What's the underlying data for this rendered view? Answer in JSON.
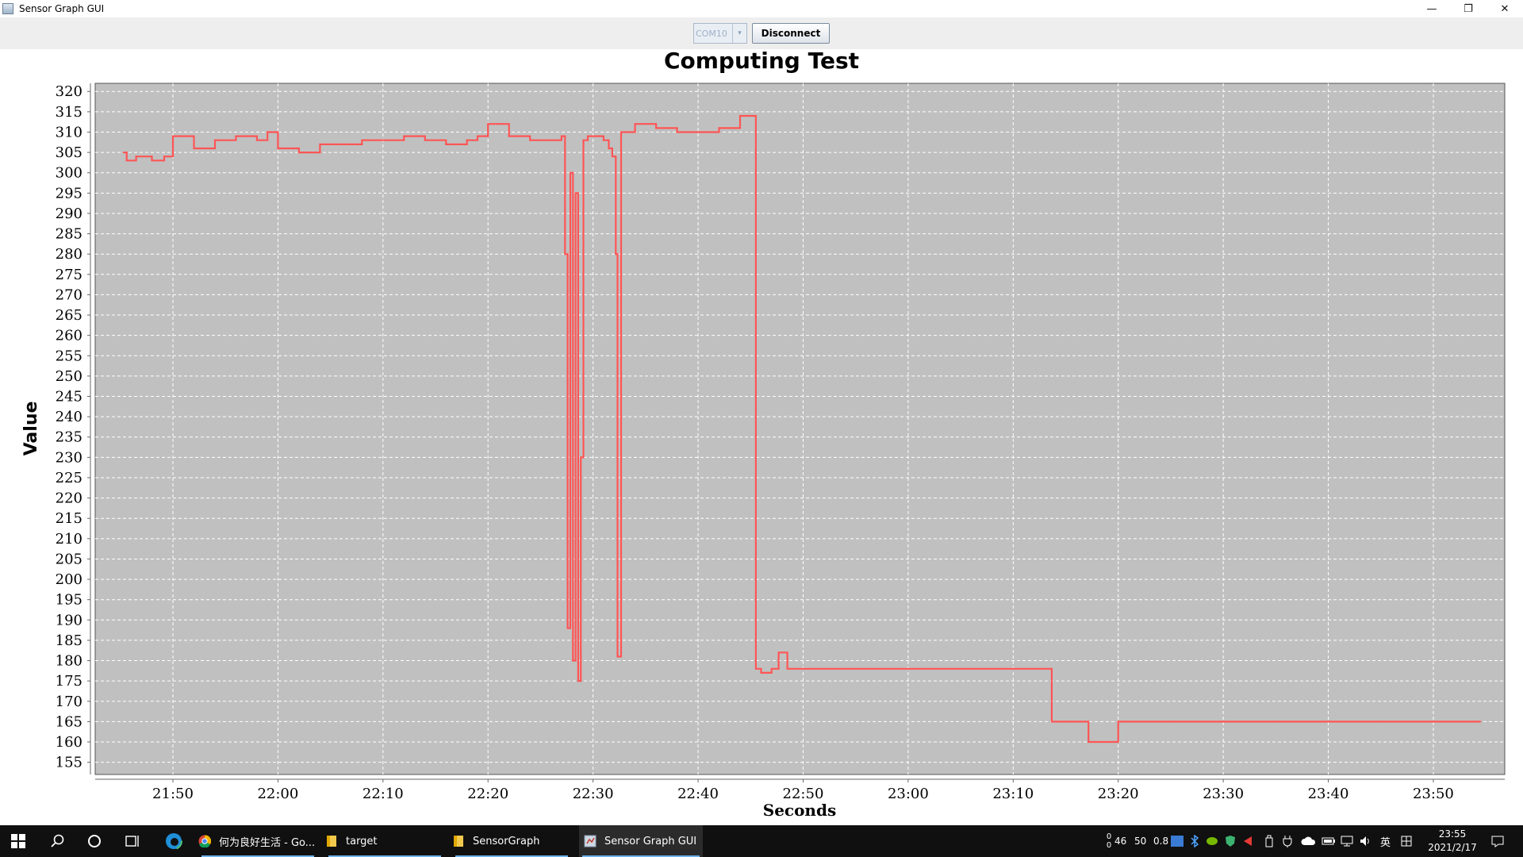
{
  "window": {
    "title": "Sensor Graph GUI",
    "controls": [
      "—",
      "❐",
      "✕"
    ]
  },
  "toolbar": {
    "port_value": "COM10",
    "port_arrow": "▾",
    "disconnect_label": "Disconnect"
  },
  "chart_data": {
    "type": "line",
    "title": "Computing Test",
    "xlabel": "Seconds",
    "ylabel": "Value",
    "ylim": [
      152,
      322
    ],
    "yticks": [
      155,
      160,
      165,
      170,
      175,
      180,
      185,
      190,
      195,
      200,
      205,
      210,
      215,
      220,
      225,
      230,
      235,
      240,
      245,
      250,
      255,
      260,
      265,
      270,
      275,
      280,
      285,
      290,
      295,
      300,
      305,
      310,
      315,
      320
    ],
    "xlim": [
      "21:42:36",
      "23:56:48"
    ],
    "xticks": [
      "21:50",
      "22:00",
      "22:10",
      "22:20",
      "22:30",
      "22:40",
      "22:50",
      "23:00",
      "23:10",
      "23:20",
      "23:30",
      "23:40",
      "23:50"
    ],
    "grid": true,
    "background": "#c0c0c0",
    "series": [
      {
        "color": "#ff5555",
        "x": [
          "21:45:18",
          "21:45:36",
          "21:46:30",
          "21:48:00",
          "21:49:10",
          "21:50:00",
          "21:52:00",
          "21:54:00",
          "21:56:00",
          "21:58:00",
          "21:59:00",
          "22:00:00",
          "22:02:00",
          "22:04:00",
          "22:06:00",
          "22:08:00",
          "22:10:00",
          "22:12:00",
          "22:14:00",
          "22:16:00",
          "22:18:00",
          "22:19:00",
          "22:20:00",
          "22:22:00",
          "22:24:00",
          "22:26:00",
          "22:27:00",
          "22:27:20",
          "22:27:35",
          "22:27:50",
          "22:28:05",
          "22:28:20",
          "22:28:35",
          "22:28:50",
          "22:29:05",
          "22:29:30",
          "22:31:00",
          "22:31:30",
          "22:31:50",
          "22:32:10",
          "22:32:20",
          "22:32:40",
          "22:34:00",
          "22:36:00",
          "22:38:00",
          "22:40:00",
          "22:42:00",
          "22:44:00",
          "22:45:00",
          "22:45:20",
          "22:45:30",
          "22:46:00",
          "22:47:00",
          "22:47:40",
          "22:48:30",
          "22:50:00",
          "22:55:00",
          "23:00:00",
          "23:05:00",
          "23:10:00",
          "23:12:00",
          "23:13:20",
          "23:13:40",
          "23:15:00",
          "23:16:50",
          "23:17:10",
          "23:20:00",
          "23:25:00",
          "23:30:00",
          "23:35:00",
          "23:40:00",
          "23:45:00",
          "23:50:00",
          "23:54:30"
        ],
        "values": [
          305,
          303,
          304,
          303,
          304,
          309,
          306,
          308,
          309,
          308,
          310,
          306,
          305,
          307,
          307,
          308,
          308,
          309,
          308,
          307,
          308,
          309,
          312,
          309,
          308,
          308,
          309,
          280,
          188,
          300,
          180,
          295,
          175,
          230,
          308,
          309,
          308,
          306,
          304,
          280,
          181,
          310,
          312,
          311,
          310,
          310,
          311,
          314,
          314,
          314,
          178,
          177,
          178,
          182,
          178,
          178,
          178,
          178,
          178,
          178,
          178,
          178,
          165,
          165,
          165,
          160,
          165,
          165,
          165,
          165,
          165,
          165,
          165,
          165
        ]
      }
    ]
  },
  "taskbar": {
    "apps": [
      {
        "label": "何为良好生活 - Go..."
      },
      {
        "label": "target"
      },
      {
        "label": "SensorGraph"
      },
      {
        "label": "Sensor Graph GUI"
      }
    ],
    "net_up": "0",
    "net_down": "0",
    "tray_num1": "46",
    "tray_num2": "50",
    "tray_num3": "0.8",
    "ime": "英",
    "time": "23:55",
    "date": "2021/2/17"
  }
}
